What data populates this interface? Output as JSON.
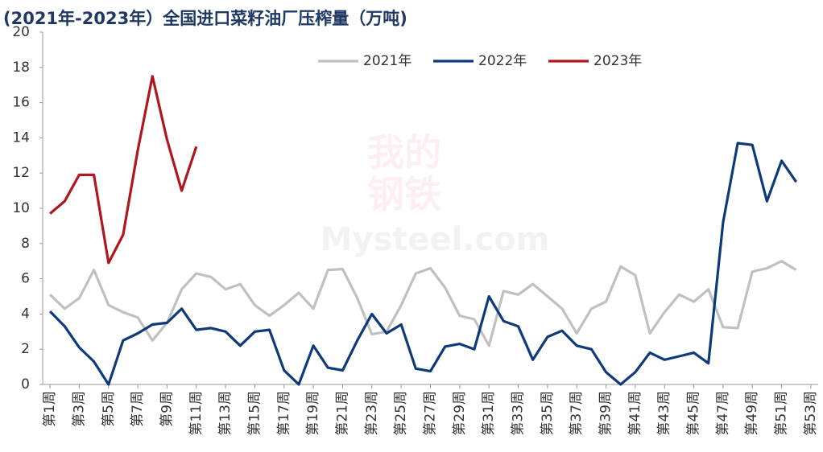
{
  "chart_data": {
    "type": "line",
    "title": "(2021年-2023年）全国进口菜籽油厂压榨量（万吨)",
    "watermark": [
      "我的",
      "钢铁",
      "Mysteel.com"
    ],
    "categories": [
      "第1周",
      null,
      "第3周",
      null,
      "第5周",
      null,
      "第7周",
      null,
      "第9周",
      null,
      "第11周",
      null,
      "第13周",
      null,
      "第15周",
      null,
      "第17周",
      null,
      "第19周",
      null,
      "第21周",
      null,
      "第23周",
      null,
      "第25周",
      null,
      "第27周",
      null,
      "第29周",
      null,
      "第31周",
      null,
      "第33周",
      null,
      "第35周",
      null,
      "第37周",
      null,
      "第39周",
      null,
      "第41周",
      null,
      "第43周",
      null,
      "第45周",
      null,
      "第47周",
      null,
      "第49周",
      null,
      "第51周",
      null,
      "第53周"
    ],
    "series": [
      {
        "name": "2021年",
        "color": "#c0c0c0",
        "values": [
          5.1,
          4.3,
          4.9,
          6.5,
          4.5,
          4.1,
          3.8,
          2.5,
          3.5,
          5.4,
          6.3,
          6.1,
          5.4,
          5.7,
          4.5,
          3.9,
          4.5,
          5.2,
          4.3,
          6.5,
          6.55,
          4.9,
          2.85,
          3.0,
          4.5,
          6.3,
          6.6,
          5.5,
          3.9,
          3.7,
          2.2,
          5.3,
          5.1,
          5.7,
          5.0,
          4.3,
          2.9,
          4.3,
          4.7,
          6.7,
          6.2,
          2.9,
          4.1,
          5.1,
          4.7,
          5.4,
          3.25,
          3.2,
          6.4,
          6.6,
          7.0,
          6.5,
          null
        ]
      },
      {
        "name": "2022年",
        "color": "#0e3a7a",
        "values": [
          4.15,
          3.3,
          2.1,
          1.3,
          0.0,
          2.5,
          2.9,
          3.4,
          3.5,
          4.3,
          3.1,
          3.2,
          3.0,
          2.2,
          3.0,
          3.1,
          0.8,
          0.0,
          2.2,
          0.95,
          0.8,
          2.5,
          4.0,
          2.9,
          3.4,
          0.9,
          0.75,
          2.15,
          2.3,
          2.0,
          5.0,
          3.6,
          3.3,
          1.4,
          2.7,
          3.05,
          2.2,
          2.0,
          0.7,
          0.0,
          0.7,
          1.8,
          1.4,
          1.6,
          1.8,
          1.2,
          9.2,
          13.7,
          13.6,
          10.4,
          12.7,
          11.5,
          null
        ]
      },
      {
        "name": "2023年",
        "color": "#b0161c",
        "values": [
          9.7,
          10.4,
          11.9,
          11.9,
          6.9,
          8.5,
          13.3,
          17.5,
          13.9,
          11.0,
          13.5,
          null,
          null,
          null,
          null,
          null,
          null,
          null,
          null,
          null,
          null,
          null,
          null,
          null,
          null,
          null,
          null,
          null,
          null,
          null,
          null,
          null,
          null,
          null,
          null,
          null,
          null,
          null,
          null,
          null,
          null,
          null,
          null,
          null,
          null,
          null,
          null,
          null,
          null,
          null,
          null,
          null,
          null
        ]
      }
    ],
    "ylim": [
      0,
      20
    ],
    "yticks": [
      0,
      2,
      4,
      6,
      8,
      10,
      12,
      14,
      16,
      18,
      20
    ],
    "grid": false,
    "legend": "top"
  }
}
